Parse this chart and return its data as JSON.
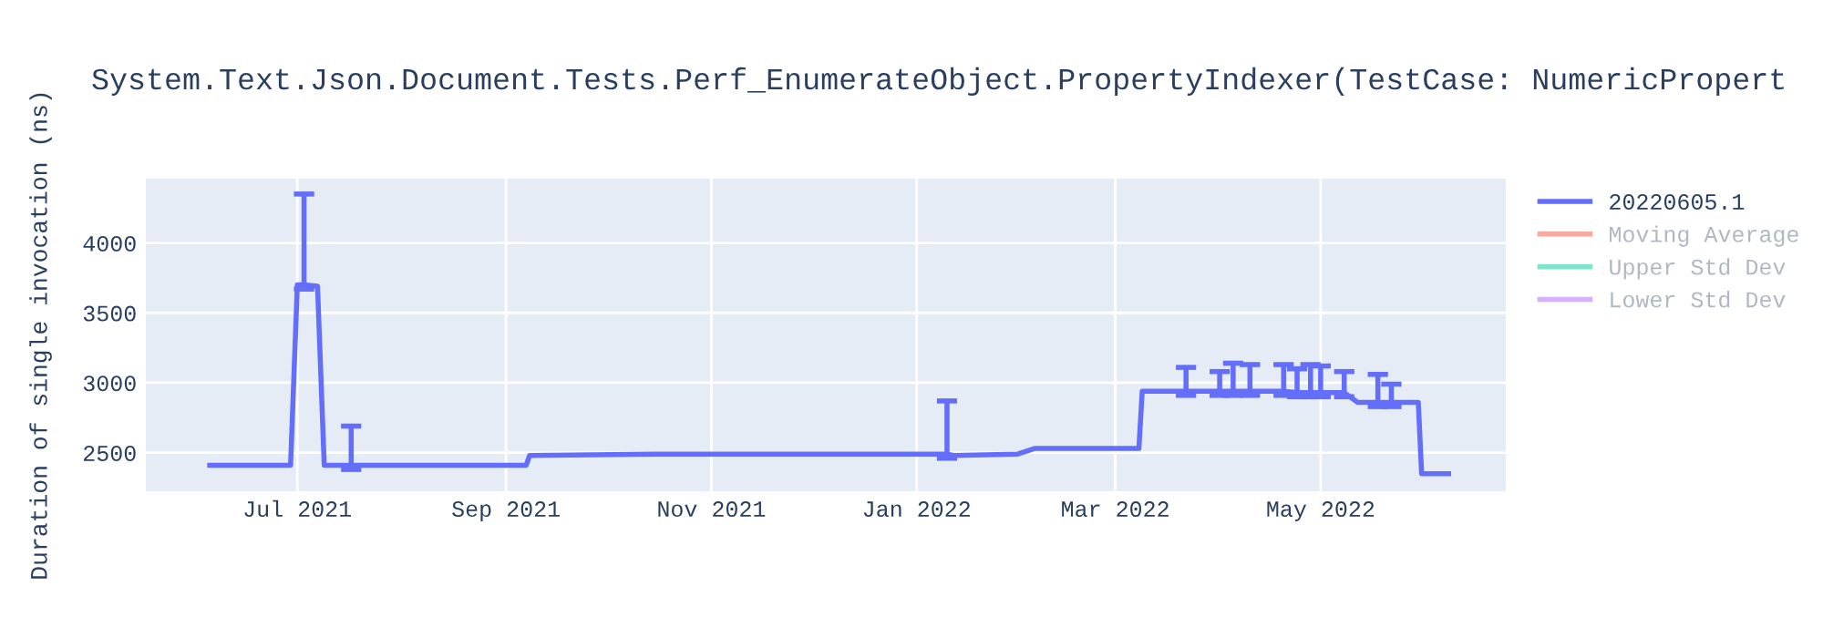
{
  "chart_data": {
    "type": "line",
    "title": "System.Text.Json.Document.Tests.Perf_EnumerateObject.PropertyIndexer(TestCase: NumericPropert",
    "ylabel": "Duration of single invocation (ns)",
    "x": [
      "2021-06-05",
      "2021-06-20",
      "2021-06-29",
      "2021-07-01",
      "2021-07-03",
      "2021-07-07",
      "2021-07-09",
      "2021-07-17",
      "2021-08-10",
      "2021-09-07",
      "2021-09-08",
      "2021-10-15",
      "2021-12-01",
      "2022-01-09",
      "2022-01-10",
      "2022-01-12",
      "2022-01-31",
      "2022-02-05",
      "2022-03-08",
      "2022-03-09",
      "2022-03-22",
      "2022-04-01",
      "2022-04-05",
      "2022-04-10",
      "2022-04-20",
      "2022-04-24",
      "2022-04-28",
      "2022-05-01",
      "2022-05-08",
      "2022-05-12",
      "2022-05-18",
      "2022-05-22",
      "2022-05-30",
      "2022-05-31",
      "2022-06-08"
    ],
    "series": [
      {
        "name": "20220605.1",
        "color": "#636efa",
        "values": [
          2410,
          2410,
          2410,
          3700,
          3700,
          3690,
          2410,
          2410,
          2410,
          2410,
          2480,
          2490,
          2490,
          2490,
          2490,
          2480,
          2490,
          2530,
          2530,
          2940,
          2940,
          2940,
          2940,
          2940,
          2940,
          2930,
          2930,
          2930,
          2930,
          2860,
          2860,
          2860,
          2860,
          2350,
          2350
        ],
        "errors": [
          null,
          null,
          null,
          null,
          [
            3670,
            4350
          ],
          null,
          null,
          [
            2380,
            2690
          ],
          null,
          null,
          null,
          null,
          null,
          null,
          [
            2460,
            2870
          ],
          null,
          null,
          null,
          null,
          null,
          [
            2910,
            3110
          ],
          [
            2910,
            3080
          ],
          [
            2910,
            3140
          ],
          [
            2910,
            3130
          ],
          [
            2910,
            3130
          ],
          [
            2900,
            3100
          ],
          [
            2900,
            3130
          ],
          [
            2900,
            3120
          ],
          [
            2900,
            3080
          ],
          null,
          [
            2830,
            3060
          ],
          [
            2830,
            2990
          ],
          null,
          null,
          null
        ]
      },
      {
        "name": "Moving Average",
        "color": "#ef553b",
        "values": [
          null,
          null,
          null,
          null,
          null,
          null,
          null,
          null,
          null,
          null,
          null,
          null,
          null,
          null,
          null,
          null,
          null,
          null,
          null,
          null,
          null,
          null,
          null,
          null,
          null,
          null,
          null,
          null,
          null,
          null,
          null,
          null,
          null,
          null,
          null
        ]
      },
      {
        "name": "Upper Std Dev",
        "color": "#00cc96",
        "values": [
          null,
          null,
          null,
          null,
          null,
          null,
          null,
          null,
          null,
          null,
          null,
          null,
          null,
          null,
          null,
          null,
          null,
          null,
          null,
          null,
          null,
          null,
          null,
          null,
          null,
          null,
          null,
          null,
          null,
          null,
          null,
          null,
          null,
          null,
          null
        ]
      },
      {
        "name": "Lower Std Dev",
        "color": "#ab63fa",
        "values": [
          null,
          null,
          null,
          null,
          null,
          null,
          null,
          null,
          null,
          null,
          null,
          null,
          null,
          null,
          null,
          null,
          null,
          null,
          null,
          null,
          null,
          null,
          null,
          null,
          null,
          null,
          null,
          null,
          null,
          null,
          null,
          null,
          null,
          null,
          null
        ]
      }
    ],
    "xlim": [
      "2021-05-17",
      "2022-06-25"
    ],
    "xticks": [
      {
        "value": "2021-07-01",
        "label": "Jul 2021"
      },
      {
        "value": "2021-09-01",
        "label": "Sep 2021"
      },
      {
        "value": "2021-11-01",
        "label": "Nov 2021"
      },
      {
        "value": "2022-01-01",
        "label": "Jan 2022"
      },
      {
        "value": "2022-03-01",
        "label": "Mar 2022"
      },
      {
        "value": "2022-05-01",
        "label": "May 2022"
      }
    ],
    "ylim": [
      2224,
      4460
    ],
    "yticks": [
      2500,
      3000,
      3500,
      4000
    ],
    "grid": true,
    "legend": "top right"
  }
}
